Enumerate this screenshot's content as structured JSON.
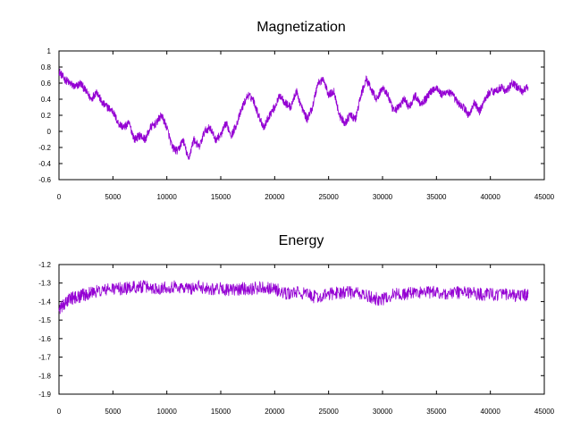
{
  "chart_data": [
    {
      "type": "line",
      "title": "Magnetization",
      "xlabel": "",
      "ylabel": "",
      "xlim": [
        0,
        45000
      ],
      "ylim": [
        -0.6,
        1
      ],
      "xticks": [
        "0",
        "5000",
        "10000",
        "15000",
        "20000",
        "25000",
        "30000",
        "35000",
        "40000",
        "45000"
      ],
      "yticks": [
        "-0.6",
        "-0.4",
        "-0.2",
        "0",
        "0.2",
        "0.4",
        "0.6",
        "0.8",
        "1"
      ],
      "grid": false,
      "legend": "none",
      "color": "#9400d3",
      "noise": 0.05,
      "series": [
        {
          "x": [
            0,
            500,
            1000,
            1500,
            2000,
            2500,
            3000,
            3500,
            4000,
            4500,
            5000,
            5500,
            6000,
            6500,
            7000,
            7500,
            8000,
            8500,
            9000,
            9500,
            10000,
            10500,
            11000,
            11500,
            12000,
            12500,
            13000,
            13500,
            14000,
            14500,
            15000,
            15500,
            16000,
            16500,
            17000,
            17500,
            18000,
            18500,
            19000,
            19500,
            20000,
            20500,
            21000,
            21500,
            22000,
            22500,
            23000,
            23500,
            24000,
            24500,
            25000,
            25500,
            26000,
            26500,
            27000,
            27500,
            28000,
            28500,
            29000,
            29500,
            30000,
            30500,
            31000,
            31500,
            32000,
            32500,
            33000,
            33500,
            34000,
            34500,
            35000,
            35500,
            36000,
            36500,
            37000,
            37500,
            38000,
            38500,
            39000,
            39500,
            40000,
            40500,
            41000,
            41500,
            42000,
            42500,
            43000,
            43500
          ],
          "y": [
            0.75,
            0.65,
            0.6,
            0.55,
            0.6,
            0.5,
            0.4,
            0.5,
            0.35,
            0.3,
            0.25,
            0.1,
            0.05,
            0.1,
            -0.1,
            -0.05,
            -0.1,
            0.05,
            0.1,
            0.2,
            0.05,
            -0.2,
            -0.25,
            -0.1,
            -0.35,
            -0.1,
            -0.2,
            0.0,
            0.05,
            -0.1,
            -0.05,
            0.1,
            -0.05,
            0.1,
            0.3,
            0.45,
            0.4,
            0.2,
            0.05,
            0.2,
            0.3,
            0.45,
            0.35,
            0.3,
            0.5,
            0.3,
            0.15,
            0.3,
            0.6,
            0.65,
            0.45,
            0.5,
            0.2,
            0.1,
            0.2,
            0.15,
            0.45,
            0.65,
            0.5,
            0.4,
            0.55,
            0.45,
            0.25,
            0.3,
            0.4,
            0.3,
            0.45,
            0.35,
            0.4,
            0.5,
            0.55,
            0.45,
            0.5,
            0.45,
            0.35,
            0.3,
            0.2,
            0.35,
            0.25,
            0.4,
            0.5,
            0.5,
            0.55,
            0.5,
            0.6,
            0.55,
            0.5,
            0.55
          ]
        }
      ]
    },
    {
      "type": "line",
      "title": "Energy",
      "xlabel": "",
      "ylabel": "",
      "xlim": [
        0,
        45000
      ],
      "ylim": [
        -1.9,
        -1.2
      ],
      "xticks": [
        "0",
        "5000",
        "10000",
        "15000",
        "20000",
        "25000",
        "30000",
        "35000",
        "40000",
        "45000"
      ],
      "yticks": [
        "-1.9",
        "-1.8",
        "-1.7",
        "-1.6",
        "-1.5",
        "-1.4",
        "-1.3",
        "-1.2"
      ],
      "grid": false,
      "legend": "none",
      "color": "#9400d3",
      "noise": 0.035,
      "series": [
        {
          "x": [
            0,
            500,
            1000,
            1500,
            2000,
            2500,
            3000,
            4000,
            5000,
            6000,
            7000,
            8000,
            9000,
            10000,
            11000,
            12000,
            13000,
            14000,
            15000,
            16000,
            17000,
            18000,
            19000,
            20000,
            21000,
            22000,
            23000,
            24000,
            25000,
            26000,
            27000,
            28000,
            29000,
            30000,
            31000,
            32000,
            33000,
            34000,
            35000,
            36000,
            37000,
            38000,
            39000,
            40000,
            41000,
            42000,
            43000,
            43500
          ],
          "y": [
            -1.44,
            -1.42,
            -1.38,
            -1.38,
            -1.37,
            -1.36,
            -1.35,
            -1.34,
            -1.33,
            -1.33,
            -1.32,
            -1.32,
            -1.33,
            -1.32,
            -1.32,
            -1.33,
            -1.32,
            -1.33,
            -1.33,
            -1.34,
            -1.33,
            -1.33,
            -1.32,
            -1.33,
            -1.36,
            -1.35,
            -1.36,
            -1.38,
            -1.36,
            -1.35,
            -1.35,
            -1.36,
            -1.38,
            -1.39,
            -1.36,
            -1.36,
            -1.35,
            -1.35,
            -1.35,
            -1.36,
            -1.35,
            -1.35,
            -1.36,
            -1.36,
            -1.36,
            -1.37,
            -1.37,
            -1.36
          ]
        }
      ]
    }
  ]
}
